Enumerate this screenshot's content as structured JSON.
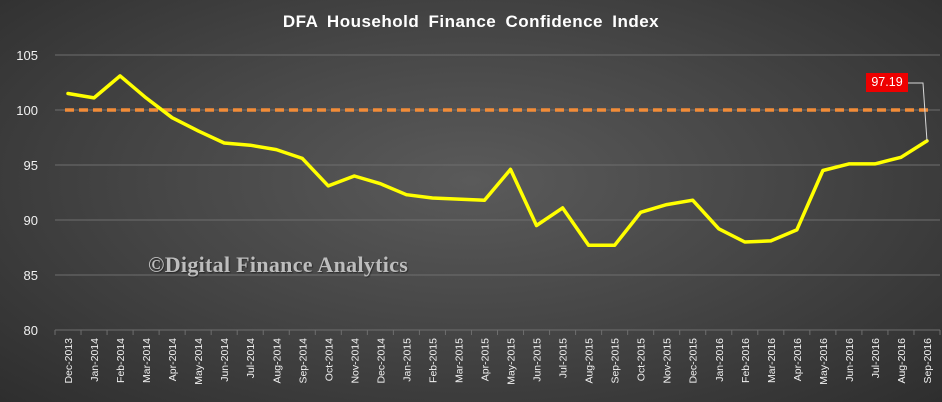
{
  "chart_data": {
    "type": "line",
    "title": "DFA Household Finance Confidence Index",
    "categories": [
      "Dec-2013",
      "Jan-2014",
      "Feb-2014",
      "Mar-2014",
      "Apr-2014",
      "May-2014",
      "Jun-2014",
      "Jul-2014",
      "Aug-2014",
      "Sep-2014",
      "Oct-2014",
      "Nov-2014",
      "Dec-2014",
      "Jan-2015",
      "Feb-2015",
      "Mar-2015",
      "Apr-2015",
      "May-2015",
      "Jun-2015",
      "Jul-2015",
      "Aug-2015",
      "Sep-2015",
      "Oct-2015",
      "Nov-2015",
      "Dec-2015",
      "Jan-2016",
      "Feb-2016",
      "Mar-2016",
      "Apr-2016",
      "May-2016",
      "Jun-2016",
      "Jul-2016",
      "Aug-2016",
      "Sep-2016"
    ],
    "series": [
      {
        "values": [
          101.5,
          101.1,
          103.1,
          101.1,
          99.3,
          98.1,
          97.0,
          96.8,
          96.4,
          95.6,
          93.1,
          94.0,
          93.3,
          92.3,
          92.0,
          91.9,
          91.8,
          94.6,
          89.5,
          91.1,
          87.7,
          87.7,
          90.7,
          91.4,
          91.8,
          89.2,
          88.0,
          88.1,
          89.1,
          94.5,
          95.1,
          95.1,
          95.7,
          97.19
        ],
        "color": "#ffff00"
      }
    ],
    "reference_line": {
      "value": 100,
      "color": "#f28c38",
      "style": "dashed"
    },
    "last_value_label": "97.19",
    "ylim": [
      80,
      105
    ],
    "yticks": [
      80,
      85,
      90,
      95,
      100,
      105
    ],
    "xlabel": "",
    "ylabel": "",
    "grid": true,
    "legend": "none"
  },
  "watermark": "©Digital Finance Analytics",
  "colors": {
    "line": "#ffff00",
    "reference": "#f28c38",
    "label_background": "#ee0000",
    "grid": "#6e6e6e",
    "text": "#ffffff"
  }
}
